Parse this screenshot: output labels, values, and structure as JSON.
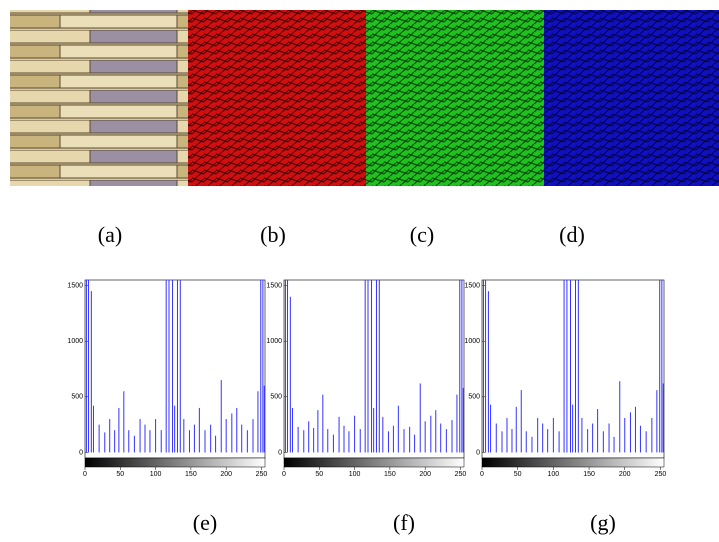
{
  "images": [
    "(a)",
    "(b)",
    "(c)",
    "(d)"
  ],
  "chart_data": [
    {
      "type": "bar",
      "caption": "(e)",
      "color": "#3333ff",
      "xlim": [
        0,
        255
      ],
      "ylim": [
        -50,
        1550
      ],
      "xticks": [
        0,
        50,
        100,
        150,
        200,
        250
      ],
      "yticks": [
        0,
        500,
        1000,
        1500
      ],
      "x": [
        2,
        5,
        9,
        12,
        20,
        28,
        35,
        42,
        48,
        55,
        62,
        70,
        78,
        85,
        92,
        100,
        108,
        115,
        119,
        124,
        127,
        131,
        135,
        140,
        148,
        155,
        162,
        170,
        178,
        185,
        193,
        200,
        208,
        215,
        222,
        230,
        238,
        245,
        249,
        252,
        254
      ],
      "values": [
        1550,
        1550,
        1450,
        420,
        250,
        180,
        300,
        200,
        400,
        550,
        200,
        150,
        300,
        250,
        200,
        300,
        200,
        1550,
        1550,
        1550,
        420,
        1550,
        1550,
        300,
        200,
        250,
        400,
        200,
        250,
        150,
        650,
        300,
        350,
        400,
        250,
        200,
        300,
        550,
        1550,
        1550,
        600
      ]
    },
    {
      "type": "bar",
      "caption": "(f)",
      "color": "#3333ff",
      "xlim": [
        0,
        255
      ],
      "ylim": [
        -50,
        1550
      ],
      "xticks": [
        0,
        50,
        100,
        150,
        200,
        250
      ],
      "yticks": [
        0,
        500,
        1000,
        1500
      ],
      "x": [
        2,
        5,
        9,
        12,
        20,
        28,
        35,
        42,
        48,
        55,
        62,
        70,
        78,
        85,
        92,
        100,
        108,
        115,
        119,
        124,
        127,
        131,
        135,
        140,
        148,
        155,
        162,
        170,
        178,
        185,
        193,
        200,
        208,
        215,
        222,
        230,
        238,
        245,
        249,
        252,
        254
      ],
      "values": [
        1550,
        1550,
        1400,
        400,
        230,
        200,
        280,
        220,
        380,
        520,
        210,
        160,
        320,
        240,
        190,
        330,
        210,
        1550,
        1550,
        1550,
        400,
        1550,
        1550,
        320,
        190,
        240,
        420,
        210,
        230,
        160,
        620,
        280,
        330,
        380,
        260,
        210,
        290,
        520,
        1550,
        1550,
        580
      ]
    },
    {
      "type": "bar",
      "caption": "(g)",
      "color": "#3333ff",
      "xlim": [
        0,
        255
      ],
      "ylim": [
        -50,
        1550
      ],
      "xticks": [
        0,
        50,
        100,
        150,
        200,
        250
      ],
      "yticks": [
        0,
        500,
        1000,
        1500
      ],
      "x": [
        2,
        5,
        9,
        12,
        20,
        28,
        35,
        42,
        48,
        55,
        62,
        70,
        78,
        85,
        92,
        100,
        108,
        115,
        119,
        124,
        127,
        131,
        135,
        140,
        148,
        155,
        162,
        170,
        178,
        185,
        193,
        200,
        208,
        215,
        222,
        230,
        238,
        245,
        249,
        252,
        254
      ],
      "values": [
        1550,
        1550,
        1450,
        430,
        260,
        190,
        310,
        210,
        410,
        560,
        190,
        140,
        310,
        260,
        210,
        310,
        190,
        1550,
        1550,
        1550,
        430,
        1550,
        1550,
        310,
        210,
        260,
        390,
        190,
        260,
        140,
        640,
        310,
        360,
        410,
        240,
        190,
        310,
        560,
        1550,
        1550,
        620
      ]
    }
  ]
}
